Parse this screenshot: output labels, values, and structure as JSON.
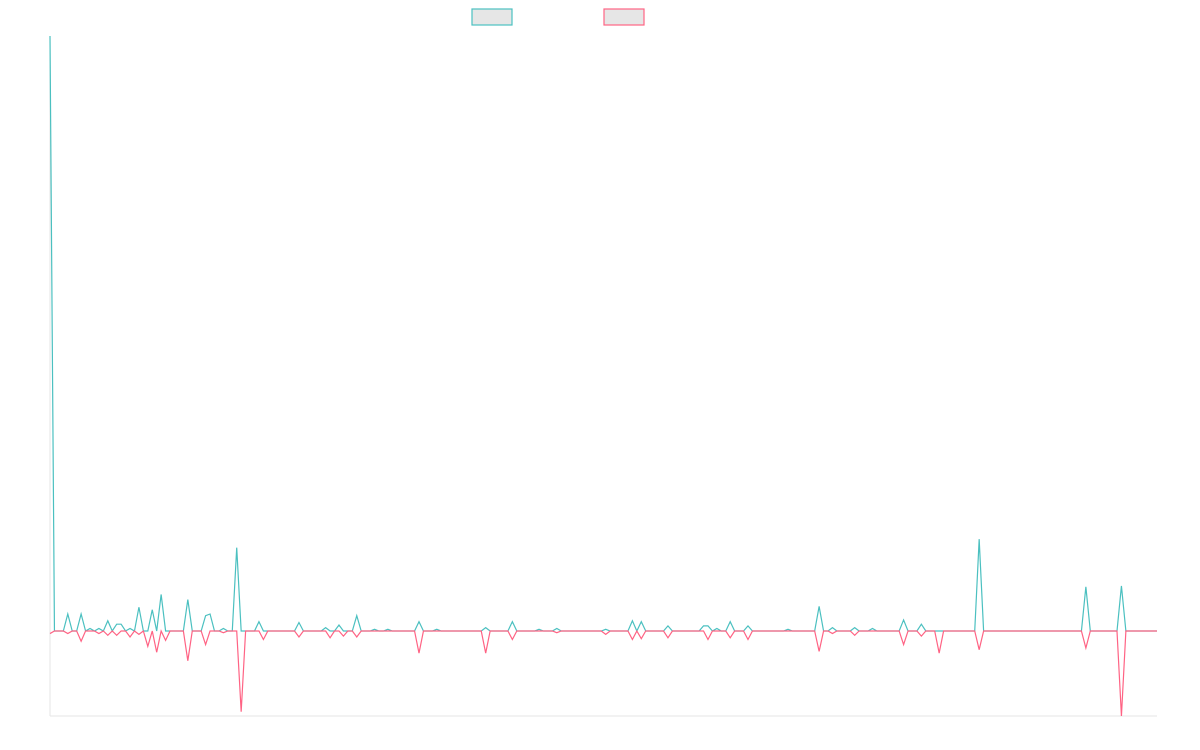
{
  "chart_data": {
    "type": "line",
    "ylim": [
      -10,
      70
    ],
    "legend": "top",
    "series": [
      {
        "color": "#4bc0c0",
        "values": [
          70,
          0,
          0,
          0,
          2,
          0,
          0,
          2,
          0,
          0.3,
          0,
          0.3,
          0,
          1.2,
          0,
          0.8,
          0.8,
          0,
          0.3,
          0,
          2.8,
          0,
          0,
          2.5,
          0,
          4.3,
          0,
          0,
          0,
          0,
          0,
          3.7,
          0,
          0,
          0,
          1.8,
          2,
          0,
          0,
          0.3,
          0,
          0,
          9.8,
          0,
          0,
          0,
          0,
          1.1,
          0,
          0,
          0,
          0,
          0,
          0,
          0,
          0,
          1,
          0,
          0,
          0,
          0,
          0,
          0.4,
          0,
          0,
          0.7,
          0,
          0,
          0,
          1.8,
          0,
          0,
          0,
          0.2,
          0,
          0,
          0.2,
          0,
          0,
          0,
          0,
          0,
          0,
          1.1,
          0,
          0,
          0,
          0.2,
          0,
          0,
          0,
          0,
          0,
          0,
          0,
          0,
          0,
          0,
          0.4,
          0,
          0,
          0,
          0,
          0,
          1.1,
          0,
          0,
          0,
          0,
          0,
          0.2,
          0,
          0,
          0,
          0.3,
          0,
          0,
          0,
          0,
          0,
          0,
          0,
          0,
          0,
          0,
          0.2,
          0,
          0,
          0,
          0,
          0,
          1.2,
          0,
          1.1,
          0,
          0,
          0,
          0,
          0,
          0.6,
          0,
          0,
          0,
          0,
          0,
          0,
          0,
          0.6,
          0.6,
          0,
          0.3,
          0,
          0,
          1.1,
          0,
          0,
          0,
          0.6,
          0,
          0,
          0,
          0,
          0,
          0,
          0,
          0,
          0.2,
          0,
          0,
          0,
          0,
          0,
          0,
          2.9,
          0,
          0,
          0.4,
          0,
          0,
          0,
          0,
          0.4,
          0,
          0,
          0,
          0.3,
          0,
          0,
          0,
          0,
          0,
          0,
          1.3,
          0,
          0,
          0,
          0.8,
          0,
          0,
          0,
          0,
          0,
          0,
          0,
          0,
          0,
          0,
          0,
          0,
          10.8,
          0,
          0,
          0,
          0,
          0,
          0,
          0,
          0,
          0,
          0,
          0,
          0,
          0,
          0,
          0,
          0,
          0,
          0,
          0,
          0,
          0,
          0,
          0,
          5.2,
          0,
          0,
          0,
          0,
          0,
          0,
          0,
          5.3,
          0,
          0,
          0,
          0,
          0,
          0,
          0,
          0
        ]
      },
      {
        "color": "#ff6384",
        "values": [
          -0.3,
          0,
          0,
          0,
          -0.3,
          0,
          0,
          -1.2,
          0,
          0,
          0,
          -0.3,
          0,
          -0.5,
          0,
          -0.5,
          0,
          0,
          -0.7,
          0,
          -0.4,
          0,
          -1.8,
          0,
          -2.5,
          0,
          -1.1,
          0,
          0,
          0,
          0,
          -3.5,
          0,
          0,
          0,
          -1.6,
          0,
          0,
          0,
          -0.2,
          0,
          0,
          0,
          -9.5,
          0,
          0,
          0,
          0,
          -1,
          0,
          0,
          0,
          0,
          0,
          0,
          0,
          -0.7,
          0,
          0,
          0,
          0,
          0,
          0,
          -0.8,
          0,
          0,
          -0.6,
          0,
          0,
          -0.7,
          0,
          0,
          0,
          0,
          0,
          0,
          0,
          0,
          0,
          0,
          0,
          0,
          0,
          -2.6,
          0,
          0,
          0,
          0,
          0,
          0,
          0,
          0,
          0,
          0,
          0,
          0,
          0,
          0,
          -2.6,
          0,
          0,
          0,
          0,
          0,
          -1,
          0,
          0,
          0,
          0,
          0,
          0,
          0,
          0,
          0,
          -0.2,
          0,
          0,
          0,
          0,
          0,
          0,
          0,
          0,
          0,
          0,
          -0.4,
          0,
          0,
          0,
          0,
          0,
          -1,
          0,
          -0.9,
          0,
          0,
          0,
          0,
          0,
          -0.8,
          0,
          0,
          0,
          0,
          0,
          0,
          0,
          0,
          -1,
          0,
          0,
          0,
          0,
          -0.8,
          0,
          0,
          0,
          -1,
          0,
          0,
          0,
          0,
          0,
          0,
          0,
          0,
          0,
          0,
          0,
          0,
          0,
          0,
          0,
          -2.4,
          0,
          0,
          -0.3,
          0,
          0,
          0,
          0,
          -0.5,
          0,
          0,
          0,
          0,
          0,
          0,
          0,
          0,
          0,
          0,
          -1.6,
          0,
          0,
          0,
          -0.6,
          0,
          0,
          0,
          -2.6,
          0,
          0,
          0,
          0,
          0,
          0,
          0,
          0,
          -2.2,
          0,
          0,
          0,
          0,
          0,
          0,
          0,
          0,
          0,
          0,
          0,
          0,
          0,
          0,
          0,
          0,
          0,
          0,
          0,
          0,
          0,
          0,
          0,
          -2,
          0,
          0,
          0,
          0,
          0,
          0,
          0,
          -10,
          0,
          0,
          0,
          0,
          0,
          0,
          0,
          0
        ]
      }
    ]
  }
}
